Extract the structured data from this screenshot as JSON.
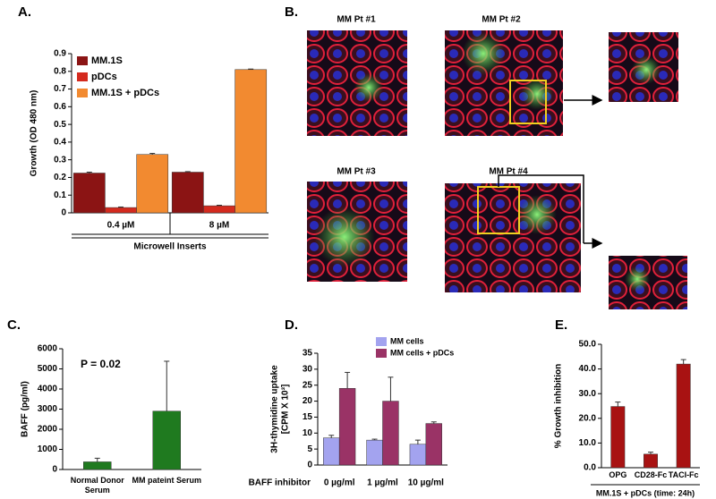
{
  "chart_data": [
    {
      "type": "bar",
      "label": "A.",
      "ylabel": [
        "Growth (OD 480 nm)"
      ],
      "xlabel": "Microwell Inserts",
      "categories": [
        "0.4 µM",
        "8 µM"
      ],
      "series": [
        {
          "name": "MM.1S",
          "color": "#8b1414",
          "values": [
            0.225,
            0.23
          ],
          "errors": [
            0.005,
            0.003
          ]
        },
        {
          "name": "pDCs",
          "color": "#d42a1e",
          "values": [
            0.03,
            0.04
          ],
          "errors": [
            0.003,
            0.003
          ]
        },
        {
          "name": "MM.1S + pDCs",
          "color": "#f28a30",
          "values": [
            0.33,
            0.81
          ],
          "errors": [
            0.006,
            0.003
          ]
        }
      ],
      "ylim": [
        0,
        0.9
      ],
      "yticks": [
        0,
        0.1,
        0.2,
        0.3,
        0.4,
        0.5,
        0.6,
        0.7,
        0.8,
        0.9
      ],
      "legend": "upper-left"
    },
    {
      "type": "bar",
      "label": "C.",
      "ylabel": [
        "BAFF (pg/ml)"
      ],
      "annotation": "P = 0.02",
      "categories": [
        "Normal Donor Serum",
        "MM pateint Serum"
      ],
      "values": [
        380,
        2900
      ],
      "errors": [
        180,
        2480
      ],
      "color": "#1f7a1f",
      "ylim": [
        0,
        6000
      ],
      "yticks": [
        0,
        1000,
        2000,
        3000,
        4000,
        5000,
        6000
      ]
    },
    {
      "type": "bar",
      "label": "D.",
      "ylabel": [
        "3H-thymidine uptake",
        "[CPM X 10³]"
      ],
      "xlabel": "BAFF inhibitor",
      "categories": [
        "0 µg/ml",
        "1 µg/ml",
        "10 µg/ml"
      ],
      "series": [
        {
          "name": "MM cells",
          "color": "#a3a3ef",
          "values": [
            8.5,
            7.8,
            6.5
          ],
          "errors": [
            0.8,
            0.3,
            1.3
          ]
        },
        {
          "name": "MM cells + pDCs",
          "color": "#9a3366",
          "values": [
            24,
            20,
            13
          ],
          "errors": [
            5,
            7.5,
            0.5
          ]
        }
      ],
      "ylim": [
        0,
        35
      ],
      "yticks": [
        0,
        5,
        10,
        15,
        20,
        25,
        30,
        35
      ],
      "legend": "upper-right"
    },
    {
      "type": "bar",
      "label": "E.",
      "ylabel": [
        "% Growth inhibition"
      ],
      "xlabel": "MM.1S + pDCs (time: 24h)",
      "categories": [
        "OPG",
        "CD28-Fc",
        "TACI-Fc"
      ],
      "values": [
        24.8,
        5.5,
        42
      ],
      "errors": [
        1.8,
        0.8,
        1.8
      ],
      "color": "#a81212",
      "ylim": [
        0,
        50
      ],
      "yticks": [
        {
          "value": 0,
          "label": "0.0"
        },
        {
          "value": 10,
          "label": "10.0"
        },
        {
          "value": 20,
          "label": "20.0"
        },
        {
          "value": 30,
          "label": "30.0"
        },
        {
          "value": 40,
          "label": "40.0"
        },
        {
          "value": 50,
          "label": "50.0"
        }
      ]
    }
  ],
  "panel_b": {
    "label": "B.",
    "images": [
      "MM Pt #1",
      "MM Pt #2",
      "MM Pt #3",
      "MM Pt #4"
    ]
  }
}
